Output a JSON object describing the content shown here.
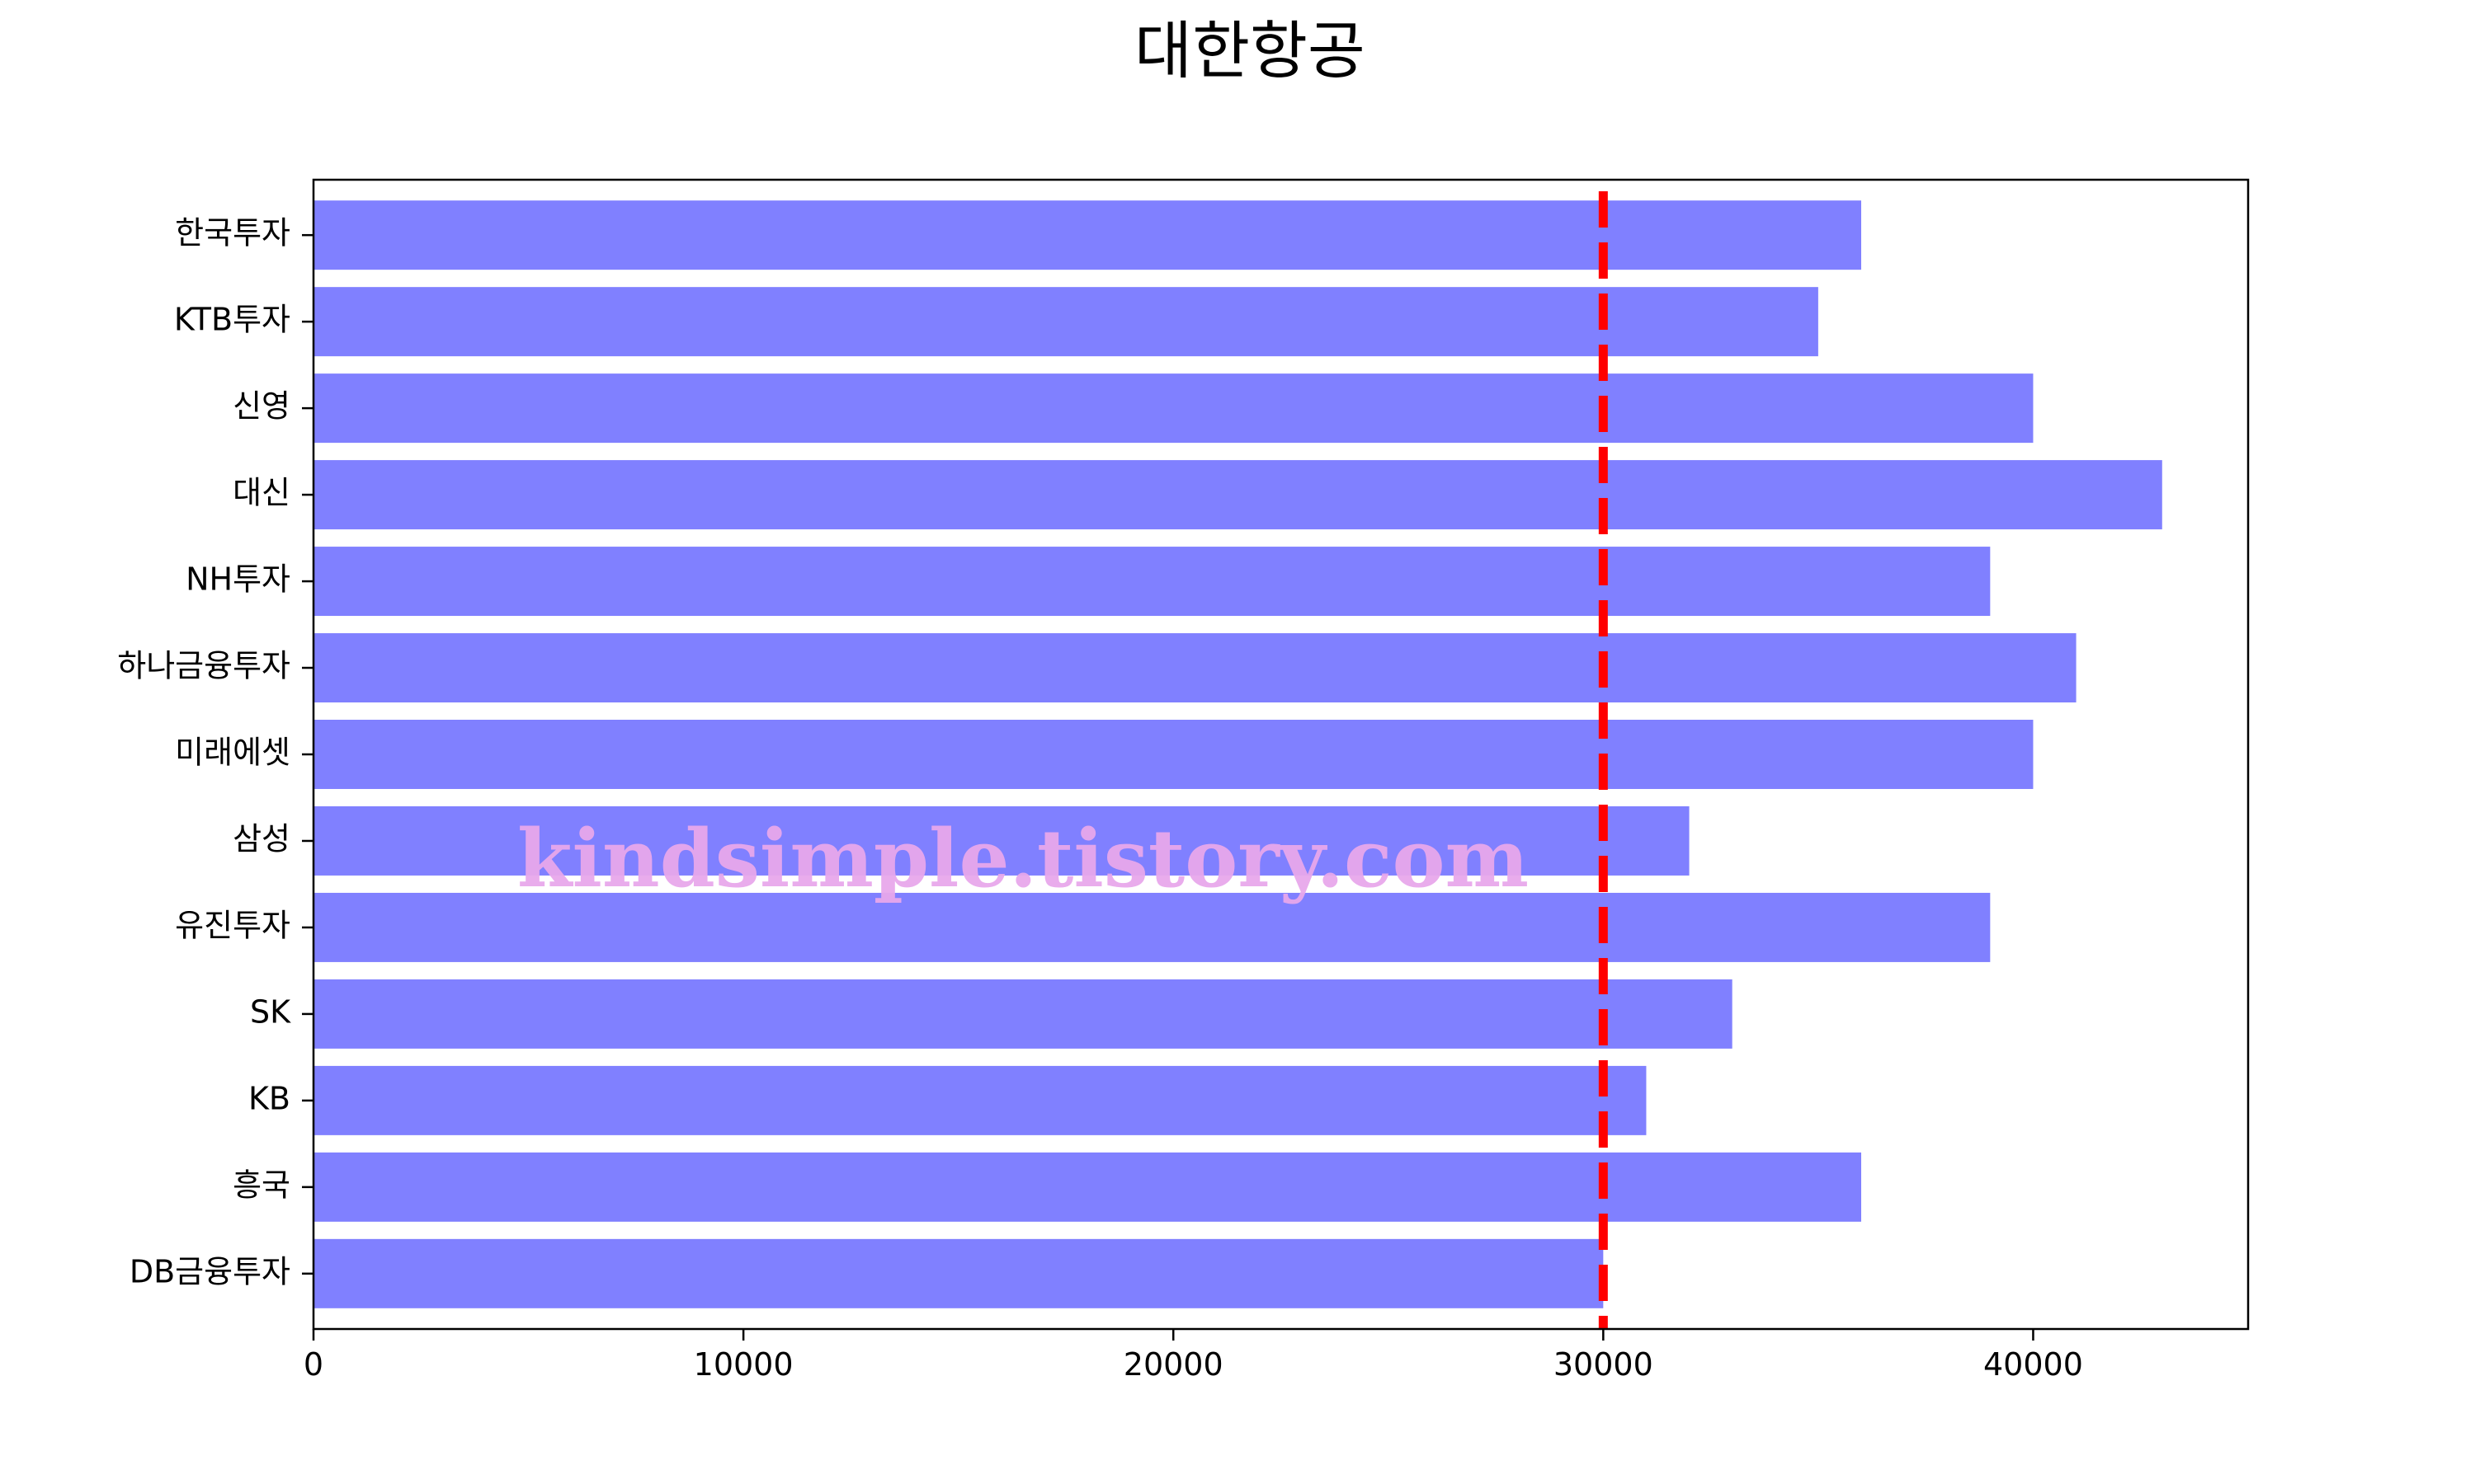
{
  "chart_data": {
    "type": "bar",
    "orientation": "horizontal",
    "title": "대한항공",
    "xlabel": "",
    "ylabel": "",
    "categories": [
      "한국투자",
      "KTB투자",
      "신영",
      "대신",
      "NH투자",
      "하나금융투자",
      "미래에셋",
      "삼성",
      "유진투자",
      "SK",
      "KB",
      "흥국",
      "DB금융투자"
    ],
    "values": [
      36000,
      35000,
      40000,
      43000,
      39000,
      41000,
      40000,
      32000,
      39000,
      33000,
      31000,
      36000,
      30000
    ],
    "xlim": [
      0,
      45000
    ],
    "xticks": [
      0,
      10000,
      20000,
      30000,
      40000
    ],
    "xtick_labels": [
      "0",
      "10000",
      "20000",
      "30000",
      "40000"
    ],
    "bar_color": "#8080ff",
    "reference_line": {
      "x": 30000,
      "style": "dashed",
      "color": "#ff0000"
    },
    "grid": false,
    "legend": "none"
  },
  "watermark": "kindsimple.tistory.com",
  "watermark_color": "#e8a8ec"
}
